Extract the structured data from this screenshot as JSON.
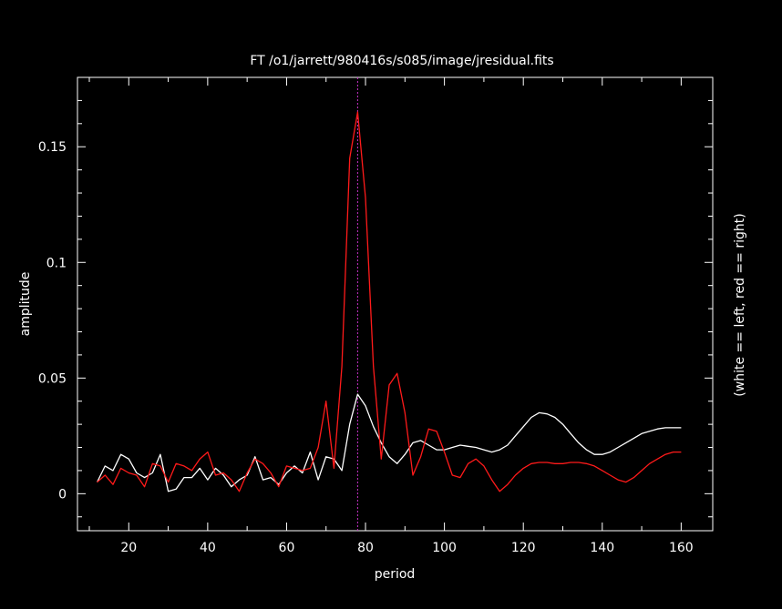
{
  "chart_data": {
    "type": "line",
    "title": "FT  /o1/jarrett/980416s/s085/image/jresidual.fits",
    "xlabel": "period",
    "ylabel": "amplitude",
    "right_label": "(white == left, red == right)",
    "xlim": [
      7,
      168
    ],
    "ylim": [
      -0.016,
      0.18
    ],
    "x_ticks": [
      20,
      40,
      60,
      80,
      100,
      120,
      140,
      160
    ],
    "y_ticks": [
      0,
      0.05,
      0.1,
      0.15
    ],
    "y_tick_labels": [
      "0",
      "0.05",
      "0.1",
      "0.15"
    ],
    "vline": {
      "x": 78,
      "color": "#cc33cc"
    },
    "series": [
      {
        "color": "#ffffff",
        "x": [
          12,
          14,
          16,
          18,
          20,
          22,
          24,
          26,
          28,
          30,
          32,
          34,
          36,
          38,
          40,
          42,
          44,
          46,
          48,
          50,
          52,
          54,
          56,
          58,
          60,
          62,
          64,
          66,
          68,
          70,
          72,
          74,
          76,
          78,
          80,
          82,
          84,
          86,
          88,
          90,
          92,
          94,
          96,
          98,
          100,
          102,
          104,
          106,
          108,
          110,
          112,
          114,
          116,
          118,
          120,
          122,
          124,
          126,
          128,
          130,
          132,
          134,
          136,
          138,
          140,
          142,
          144,
          146,
          148,
          150,
          152,
          154,
          156,
          158,
          160
        ],
        "y": [
          0.005,
          0.012,
          0.01,
          0.017,
          0.015,
          0.009,
          0.007,
          0.009,
          0.017,
          0.001,
          0.002,
          0.007,
          0.007,
          0.011,
          0.006,
          0.011,
          0.008,
          0.003,
          0.006,
          0.008,
          0.016,
          0.006,
          0.007,
          0.004,
          0.009,
          0.012,
          0.009,
          0.018,
          0.006,
          0.016,
          0.015,
          0.01,
          0.03,
          0.043,
          0.038,
          0.029,
          0.022,
          0.016,
          0.013,
          0.017,
          0.022,
          0.023,
          0.021,
          0.019,
          0.019,
          0.02,
          0.021,
          0.0205,
          0.02,
          0.019,
          0.018,
          0.019,
          0.021,
          0.025,
          0.029,
          0.033,
          0.035,
          0.0345,
          0.033,
          0.03,
          0.026,
          0.022,
          0.019,
          0.017,
          0.017,
          0.018,
          0.02,
          0.022,
          0.024,
          0.026,
          0.027,
          0.028,
          0.0285,
          0.0285,
          0.0285
        ]
      },
      {
        "color": "#ff1a1a",
        "x": [
          12,
          14,
          16,
          18,
          20,
          22,
          24,
          26,
          28,
          30,
          32,
          34,
          36,
          38,
          40,
          42,
          44,
          46,
          48,
          50,
          52,
          54,
          56,
          58,
          60,
          62,
          64,
          66,
          68,
          70,
          72,
          74,
          76,
          78,
          80,
          82,
          84,
          86,
          88,
          90,
          92,
          94,
          96,
          98,
          100,
          102,
          104,
          106,
          108,
          110,
          112,
          114,
          116,
          118,
          120,
          122,
          124,
          126,
          128,
          130,
          132,
          134,
          136,
          138,
          140,
          142,
          144,
          146,
          148,
          150,
          152,
          154,
          156,
          158,
          160
        ],
        "y": [
          0.005,
          0.008,
          0.004,
          0.011,
          0.009,
          0.008,
          0.003,
          0.013,
          0.012,
          0.005,
          0.013,
          0.012,
          0.01,
          0.015,
          0.018,
          0.008,
          0.009,
          0.006,
          0.001,
          0.009,
          0.015,
          0.013,
          0.009,
          0.003,
          0.012,
          0.011,
          0.01,
          0.011,
          0.02,
          0.04,
          0.011,
          0.055,
          0.145,
          0.165,
          0.128,
          0.055,
          0.015,
          0.047,
          0.052,
          0.035,
          0.008,
          0.016,
          0.028,
          0.027,
          0.018,
          0.008,
          0.007,
          0.013,
          0.015,
          0.012,
          0.006,
          0.001,
          0.004,
          0.008,
          0.011,
          0.013,
          0.0135,
          0.0135,
          0.013,
          0.013,
          0.0135,
          0.0135,
          0.013,
          0.012,
          0.01,
          0.008,
          0.006,
          0.005,
          0.007,
          0.01,
          0.013,
          0.015,
          0.017,
          0.018,
          0.018
        ]
      }
    ]
  }
}
